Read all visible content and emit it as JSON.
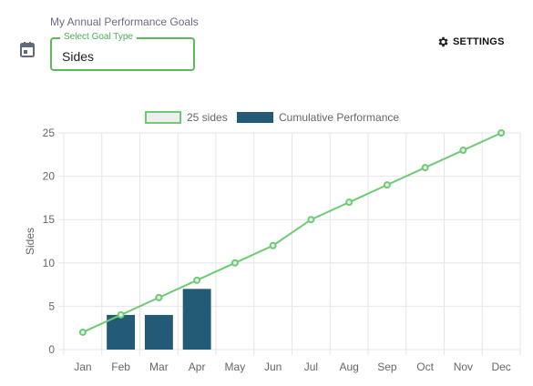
{
  "header": {
    "title": "My Annual Performance Goals",
    "select_label": "Select Goal Type",
    "select_value": "Sides",
    "settings_label": "SETTINGS"
  },
  "icons": {
    "calendar": "calendar-icon",
    "settings": "gear-icon"
  },
  "colors": {
    "accent": "#5bb85d",
    "goal_line": "#6ccb73",
    "bar": "#235a75"
  },
  "chart_data": {
    "type": "bar",
    "categories": [
      "Jan",
      "Feb",
      "Mar",
      "Apr",
      "May",
      "Jun",
      "Jul",
      "Aug",
      "Sep",
      "Oct",
      "Nov",
      "Dec"
    ],
    "series": [
      {
        "name": "25 sides",
        "type": "line",
        "values": [
          2,
          4,
          6,
          8,
          10,
          12,
          15,
          17,
          19,
          21,
          23,
          25
        ]
      },
      {
        "name": "Cumulative Performance",
        "type": "bar",
        "values": [
          null,
          4,
          4,
          7,
          null,
          null,
          null,
          null,
          null,
          null,
          null,
          null
        ]
      }
    ],
    "ylabel": "Sides",
    "xlabel": "",
    "ylim": [
      0,
      25
    ],
    "yticks": [
      0,
      5,
      10,
      15,
      20,
      25
    ],
    "grid": true,
    "legend_position": "top-center"
  }
}
